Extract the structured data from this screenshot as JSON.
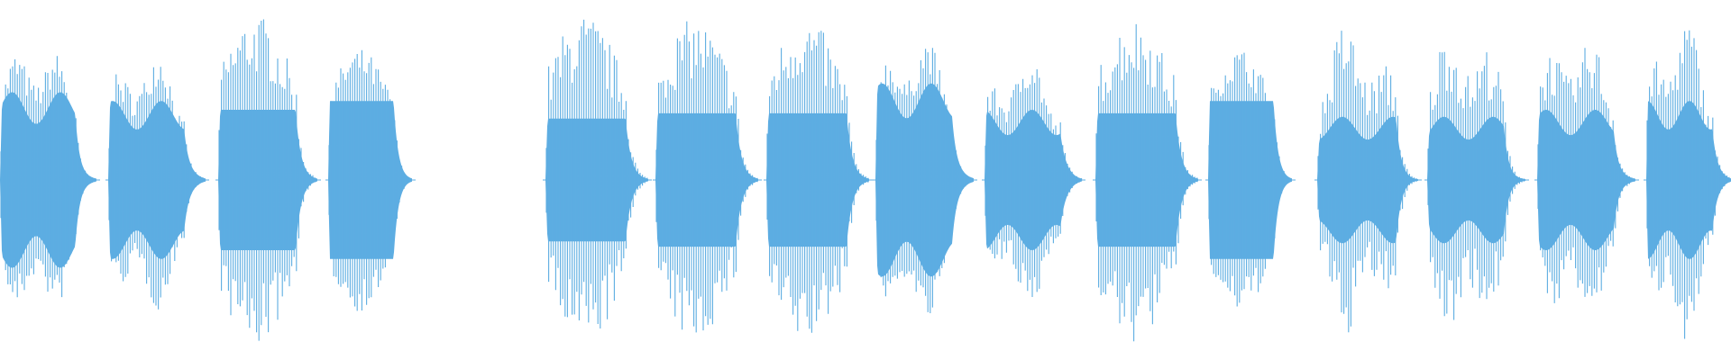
{
  "waveform": {
    "color": "#5dade2",
    "background": "#ffffff",
    "segments": [
      {
        "peak": 0.85,
        "core": 0.5,
        "wobble": true
      },
      {
        "peak": 0.8,
        "core": 0.45,
        "wobble": true
      },
      {
        "peak": 0.95,
        "core": 0.4,
        "wobble": false
      },
      {
        "peak": 0.75,
        "core": 0.45,
        "wobble": false
      },
      {
        "peak": 0.95,
        "core": 0.35,
        "wobble": false
      },
      {
        "peak": 0.92,
        "core": 0.38,
        "wobble": false
      },
      {
        "peak": 0.93,
        "core": 0.38,
        "wobble": false
      },
      {
        "peak": 0.88,
        "core": 0.55,
        "wobble": true
      },
      {
        "peak": 0.78,
        "core": 0.4,
        "wobble": true
      },
      {
        "peak": 0.93,
        "core": 0.38,
        "wobble": false
      },
      {
        "peak": 0.75,
        "core": 0.45,
        "wobble": false
      },
      {
        "peak": 0.94,
        "core": 0.36,
        "wobble": true
      },
      {
        "peak": 0.95,
        "core": 0.36,
        "wobble": true
      },
      {
        "peak": 0.91,
        "core": 0.4,
        "wobble": true
      },
      {
        "peak": 0.97,
        "core": 0.45,
        "wobble": true
      }
    ]
  }
}
